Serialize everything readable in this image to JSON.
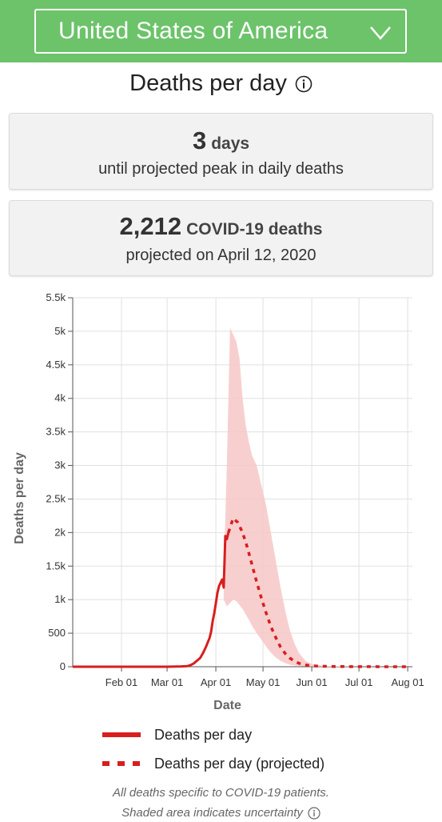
{
  "header": {
    "country": "United States of America",
    "dropdown_icon": "chevron-down-icon",
    "bg_color": "#6cc36a"
  },
  "section": {
    "title": "Deaths per day",
    "info_icon": "info-icon"
  },
  "peak_card": {
    "value": "3",
    "unit": "days",
    "caption": "until projected peak in daily deaths"
  },
  "deaths_card": {
    "value": "2,212",
    "unit": "COVID-19 deaths",
    "caption": "projected on April 12, 2020"
  },
  "chart_data": {
    "type": "line",
    "title": "",
    "xlabel": "Date",
    "ylabel": "Deaths per day",
    "ylim": [
      0,
      5500
    ],
    "yticks": [
      0,
      500,
      1000,
      1500,
      2000,
      2500,
      3000,
      3500,
      4000,
      4500,
      5000,
      5500
    ],
    "ytick_labels": [
      "0",
      "500",
      "1k",
      "1.5k",
      "2k",
      "2.5k",
      "3k",
      "3.5k",
      "4k",
      "4.5k",
      "5k",
      "5.5k"
    ],
    "xlim": [
      "2020-01-01",
      "2020-08-04"
    ],
    "xticks": [
      "2020-02-01",
      "2020-03-01",
      "2020-04-01",
      "2020-05-01",
      "2020-06-01",
      "2020-07-01",
      "2020-08-01"
    ],
    "xtick_labels": [
      "Feb 01",
      "Mar 01",
      "Apr 01",
      "May 01",
      "Jun 01",
      "Jul 01",
      "Aug 01"
    ],
    "grid": true,
    "series": [
      {
        "name": "Deaths per day",
        "style": "solid",
        "color": "#d81e1e",
        "x": [
          "2020-01-01",
          "2020-02-01",
          "2020-03-01",
          "2020-03-10",
          "2020-03-14",
          "2020-03-16",
          "2020-03-18",
          "2020-03-20",
          "2020-03-22",
          "2020-03-24",
          "2020-03-26",
          "2020-03-28",
          "2020-03-29",
          "2020-03-30",
          "2020-03-31",
          "2020-04-01",
          "2020-04-02",
          "2020-04-03",
          "2020-04-04",
          "2020-04-05",
          "2020-04-06",
          "2020-04-07",
          "2020-04-08",
          "2020-04-09"
        ],
        "y": [
          0,
          0,
          0,
          5,
          10,
          25,
          50,
          90,
          130,
          210,
          310,
          430,
          520,
          680,
          800,
          950,
          1100,
          1200,
          1250,
          1300,
          1180,
          1950,
          1900,
          2000
        ]
      },
      {
        "name": "Deaths per day (projected)",
        "style": "dashed",
        "color": "#d81e1e",
        "x": [
          "2020-04-09",
          "2020-04-12",
          "2020-04-15",
          "2020-04-18",
          "2020-04-21",
          "2020-04-24",
          "2020-04-27",
          "2020-04-30",
          "2020-05-03",
          "2020-05-06",
          "2020-05-09",
          "2020-05-12",
          "2020-05-15",
          "2020-05-18",
          "2020-05-21",
          "2020-05-24",
          "2020-05-27",
          "2020-05-31",
          "2020-06-05",
          "2020-06-15",
          "2020-07-01",
          "2020-08-01"
        ],
        "y": [
          2000,
          2212,
          2150,
          2000,
          1780,
          1520,
          1260,
          1020,
          800,
          600,
          440,
          300,
          200,
          130,
          80,
          50,
          30,
          15,
          8,
          3,
          1,
          0
        ]
      }
    ],
    "uncertainty_band": {
      "color": "#f7c7c7",
      "x": [
        "2020-04-06",
        "2020-04-08",
        "2020-04-10",
        "2020-04-12",
        "2020-04-14",
        "2020-04-16",
        "2020-04-18",
        "2020-04-20",
        "2020-04-22",
        "2020-04-24",
        "2020-04-27",
        "2020-04-30",
        "2020-05-03",
        "2020-05-06",
        "2020-05-09",
        "2020-05-12",
        "2020-05-15",
        "2020-05-18",
        "2020-05-21",
        "2020-05-24",
        "2020-05-28",
        "2020-06-01",
        "2020-06-10",
        "2020-07-01",
        "2020-08-01"
      ],
      "lower": [
        1000,
        900,
        950,
        1000,
        980,
        920,
        860,
        780,
        700,
        610,
        500,
        400,
        300,
        210,
        140,
        90,
        55,
        30,
        18,
        10,
        5,
        2,
        0,
        0,
        0
      ],
      "upper": [
        1400,
        3000,
        5050,
        4950,
        4850,
        4600,
        4000,
        3600,
        3350,
        3150,
        3000,
        2700,
        2400,
        2000,
        1600,
        1200,
        850,
        550,
        350,
        200,
        90,
        40,
        10,
        0,
        0
      ]
    }
  },
  "legend": {
    "items": [
      {
        "label": "Deaths per day",
        "style": "solid"
      },
      {
        "label": "Deaths per day (projected)",
        "style": "dashed"
      }
    ]
  },
  "footnotes": {
    "line1": "All deaths specific to COVID-19 patients.",
    "line2": "Shaded area indicates uncertainty"
  }
}
